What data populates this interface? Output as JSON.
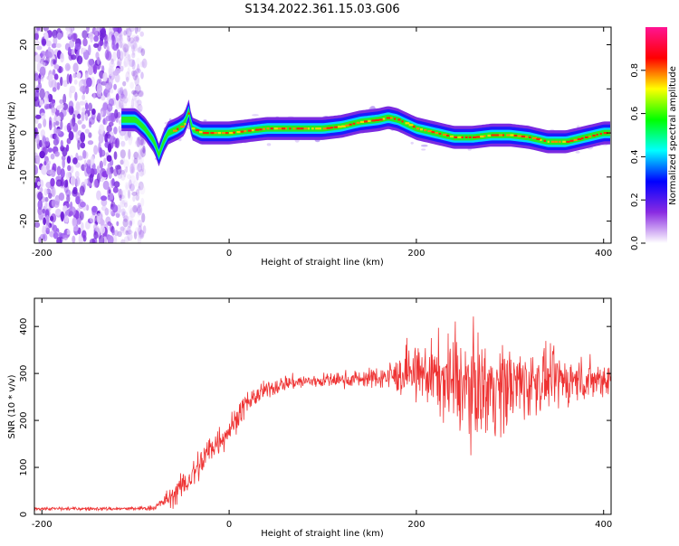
{
  "title": "S134.2022.361.15.03.G06",
  "chart_data": [
    {
      "type": "heatmap",
      "xlabel": "Height of straight line (km)",
      "ylabel": "Frequency (Hz)",
      "xlim": [
        -208,
        408
      ],
      "ylim": [
        -25,
        24
      ],
      "x_ticks": [
        -200,
        0,
        200,
        400
      ],
      "y_ticks": [
        -20,
        -10,
        0,
        10,
        20
      ],
      "colorbar": {
        "label": "Normalized spectral amplitude",
        "range": [
          0,
          1
        ],
        "ticks": [
          "0.0",
          "0.2",
          "0.4",
          "0.6",
          "0.8"
        ],
        "colors": [
          "#ffffff",
          "#8a2be2",
          "#0000ff",
          "#00ffff",
          "#00ff00",
          "#ffff00",
          "#ff0000",
          "#ff1493"
        ]
      },
      "noise_region_x": [
        -208,
        -100
      ],
      "ridge": {
        "x": [
          -115,
          -100,
          -90,
          -80,
          -75,
          -70,
          -65,
          -55,
          -48,
          -43,
          -40,
          -30,
          0,
          20,
          40,
          60,
          80,
          100,
          120,
          140,
          160,
          170,
          180,
          200,
          220,
          240,
          260,
          280,
          300,
          320,
          340,
          360,
          380,
          400,
          408
        ],
        "y": [
          3,
          3,
          1,
          -2,
          -5,
          -2,
          0,
          1,
          2,
          5,
          1,
          0,
          0,
          0.5,
          1,
          1,
          1,
          1,
          1.5,
          2.5,
          3,
          3.5,
          3,
          1,
          0,
          -1,
          -1,
          -0.5,
          -0.5,
          -1,
          -2,
          -2,
          -1,
          0,
          0
        ]
      }
    },
    {
      "type": "line",
      "xlabel": "Height of straight line (km)",
      "ylabel": "SNR (10 * v/v)",
      "xlim": [
        -208,
        408
      ],
      "ylim": [
        0,
        460
      ],
      "x_ticks": [
        -200,
        0,
        200,
        400
      ],
      "y_ticks": [
        0,
        100,
        200,
        300,
        400
      ],
      "color": "#ee3333",
      "envelope": {
        "x": [
          -208,
          -100,
          -80,
          -60,
          -40,
          -30,
          -20,
          -10,
          0,
          10,
          20,
          40,
          60,
          100,
          150,
          180,
          200,
          220,
          240,
          260,
          280,
          300,
          320,
          340,
          360,
          380,
          408
        ],
        "mean": [
          12,
          12,
          14,
          40,
          80,
          110,
          140,
          160,
          180,
          210,
          240,
          265,
          280,
          285,
          290,
          295,
          300,
          295,
          280,
          270,
          270,
          275,
          280,
          285,
          285,
          285,
          290
        ],
        "spread": [
          5,
          5,
          8,
          30,
          45,
          50,
          50,
          45,
          40,
          35,
          30,
          25,
          22,
          20,
          25,
          50,
          70,
          100,
          130,
          140,
          135,
          120,
          100,
          80,
          70,
          60,
          50
        ]
      }
    }
  ]
}
